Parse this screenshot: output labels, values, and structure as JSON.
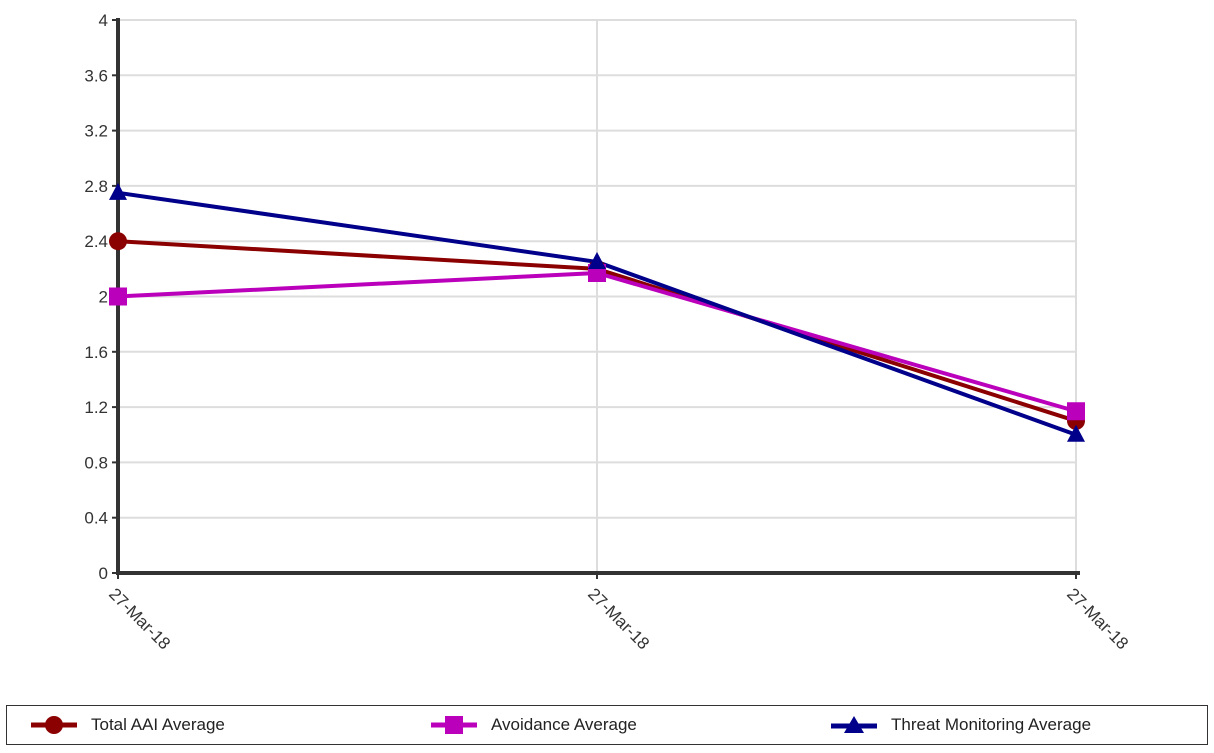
{
  "chart_data": {
    "type": "line",
    "title": "",
    "xlabel": "",
    "ylabel": "",
    "categories": [
      "27-Mar-18",
      "27-Mar-18",
      "27-Mar-18"
    ],
    "ylim": [
      0,
      4
    ],
    "yticks": [
      "0",
      "0.4",
      "0.8",
      "1.2",
      "1.6",
      "2",
      "2.4",
      "2.8",
      "3.2",
      "3.6",
      "4"
    ],
    "grid": true,
    "legend_position": "bottom",
    "series": [
      {
        "name": "Total AAI Average",
        "values": [
          2.4,
          2.2,
          1.1
        ],
        "color": "#8b0000",
        "marker": "circle"
      },
      {
        "name": "Avoidance Average",
        "values": [
          2.0,
          2.17,
          1.17
        ],
        "color": "#bb00bb",
        "marker": "square"
      },
      {
        "name": "Threat Monitoring Average",
        "values": [
          2.75,
          2.25,
          1.0
        ],
        "color": "#00008b",
        "marker": "triangle"
      }
    ]
  }
}
